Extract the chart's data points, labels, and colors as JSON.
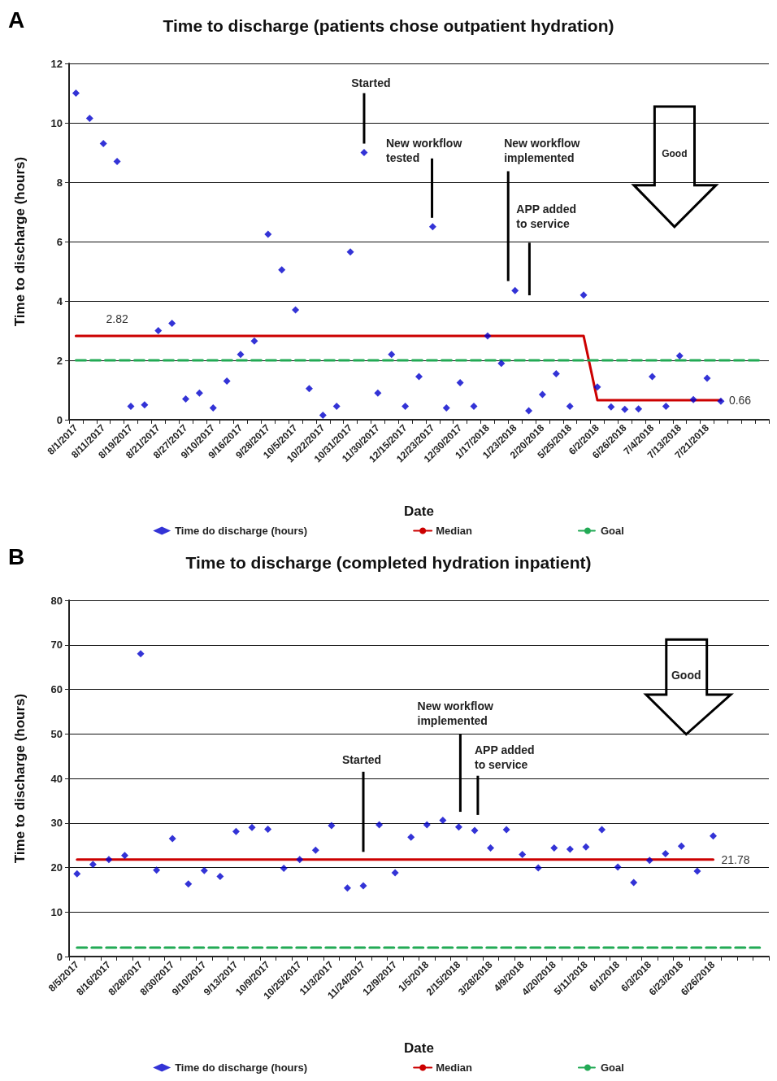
{
  "chart_data": [
    {
      "type": "scatter",
      "title": "Time to discharge (patients chose outpatient hydration)",
      "xlabel": "Date",
      "ylabel": "Time to discharge (hours)",
      "ylim": [
        0,
        12
      ],
      "yticks": [
        0,
        2,
        4,
        6,
        8,
        10,
        12
      ],
      "grid": "y",
      "legend": "bottom",
      "annotations": [
        "A",
        "Started",
        "New workflow tested",
        "New workflow implemented",
        "APP added to service",
        "Good"
      ],
      "categories": [
        "8/1/2017",
        null,
        "8/11/2017",
        null,
        "8/19/2017",
        null,
        "8/21/2017",
        null,
        "8/27/2017",
        null,
        "9/10/2017",
        null,
        "9/16/2017",
        null,
        "9/28/2017",
        null,
        "10/5/2017",
        null,
        "10/22/2017",
        null,
        "10/31/2017",
        null,
        "11/30/2017",
        null,
        "12/15/2017",
        null,
        "12/23/2017",
        null,
        "12/30/2017",
        null,
        "1/17/2018",
        null,
        "1/23/2018",
        null,
        "2/20/2018",
        null,
        "5/25/2018",
        null,
        "6/2/2018",
        null,
        "6/26/2018",
        null,
        "7/4/2018",
        null,
        "7/13/2018",
        null,
        "7/21/2018",
        null,
        null,
        null,
        null
      ],
      "series": [
        {
          "name": "Time do discharge (hours)",
          "marker": "diamond",
          "color": "#0000cc",
          "values": [
            11.0,
            10.15,
            9.3,
            8.7,
            0.45,
            0.5,
            3.0,
            3.25,
            0.7,
            0.9,
            0.4,
            1.3,
            2.2,
            2.65,
            6.25,
            5.05,
            3.7,
            1.05,
            0.15,
            0.45,
            5.65,
            9.0,
            0.9,
            2.2,
            0.45,
            1.45,
            6.5,
            0.4,
            1.25,
            0.45,
            2.82,
            1.9,
            4.35,
            0.3,
            0.85,
            1.55,
            0.45,
            4.2,
            1.1,
            0.43,
            0.35,
            0.36,
            1.45,
            0.45,
            2.15,
            0.68,
            1.4,
            0.62,
            null,
            null,
            null
          ]
        },
        {
          "name": "Median",
          "type": "line",
          "color": "#cc0000",
          "line_style": "solid",
          "values": [
            2.82,
            2.82,
            2.82,
            2.82,
            2.82,
            2.82,
            2.82,
            2.82,
            2.82,
            2.82,
            2.82,
            2.82,
            2.82,
            2.82,
            2.82,
            2.82,
            2.82,
            2.82,
            2.82,
            2.82,
            2.82,
            2.82,
            2.82,
            2.82,
            2.82,
            2.82,
            2.82,
            2.82,
            2.82,
            2.82,
            2.82,
            2.82,
            2.82,
            2.82,
            2.82,
            2.82,
            2.82,
            2.82,
            0.66,
            0.66,
            0.66,
            0.66,
            0.66,
            0.66,
            0.66,
            0.66,
            0.66,
            0.66,
            null,
            null,
            null
          ],
          "value_labels": [
            null,
            null,
            null,
            "2.82",
            null,
            null,
            null,
            null,
            null,
            null,
            null,
            null,
            null,
            null,
            null,
            null,
            null,
            null,
            null,
            null,
            null,
            null,
            null,
            null,
            null,
            null,
            null,
            null,
            null,
            null,
            null,
            null,
            null,
            null,
            null,
            null,
            null,
            null,
            null,
            null,
            null,
            null,
            null,
            null,
            null,
            null,
            null,
            "0.66",
            null,
            null,
            null
          ]
        },
        {
          "name": "Goal",
          "type": "line",
          "color": "#22aa55",
          "line_style": "dashed",
          "values": [
            2,
            2,
            2,
            2,
            2,
            2,
            2,
            2,
            2,
            2,
            2,
            2,
            2,
            2,
            2,
            2,
            2,
            2,
            2,
            2,
            2,
            2,
            2,
            2,
            2,
            2,
            2,
            2,
            2,
            2,
            2,
            2,
            2,
            2,
            2,
            2,
            2,
            2,
            2,
            2,
            2,
            2,
            2,
            2,
            2,
            2,
            2,
            2,
            2,
            2,
            2
          ]
        }
      ]
    },
    {
      "type": "scatter",
      "title": "Time to discharge (completed hydration inpatient)",
      "xlabel": "Date",
      "ylabel": "Time to discharge (hours)",
      "ylim": [
        0,
        80
      ],
      "yticks": [
        0,
        10,
        20,
        30,
        40,
        50,
        60,
        70,
        80
      ],
      "grid": "y",
      "legend": "bottom",
      "annotations": [
        "B",
        "Started",
        "New workflow implemented",
        "APP added to service",
        "Good"
      ],
      "categories": [
        "8/5/2017",
        null,
        "8/16/2017",
        null,
        "8/28/2017",
        null,
        "8/30/2017",
        null,
        "9/10/2017",
        null,
        "9/13/2017",
        null,
        "10/9/2017",
        null,
        "10/25/2017",
        null,
        "11/3/2017",
        null,
        "11/24/2017",
        null,
        "12/9/2017",
        null,
        "1/5/2018",
        null,
        "2/15/2018",
        null,
        "3/28/2018",
        null,
        "4/9/2018",
        null,
        "4/20/2018",
        null,
        "5/11/2018",
        null,
        "6/1/2018",
        null,
        "6/3/2018",
        null,
        "6/23/2018",
        null,
        "6/26/2018",
        null,
        null,
        null
      ],
      "series": [
        {
          "name": "Time do discharge (hours)",
          "marker": "diamond",
          "color": "#0000cc",
          "values": [
            18.6,
            20.7,
            21.8,
            22.7,
            68.0,
            19.4,
            26.5,
            16.3,
            19.3,
            18.0,
            28.1,
            29.0,
            28.6,
            19.8,
            21.8,
            23.9,
            29.4,
            15.4,
            15.9,
            29.6,
            18.8,
            26.8,
            29.6,
            30.6,
            29.1,
            28.3,
            24.4,
            28.5,
            22.9,
            19.9,
            24.4,
            24.1,
            24.6,
            28.5,
            20.1,
            16.6,
            21.6,
            23.1,
            24.8,
            19.2,
            27.1,
            null,
            null,
            null
          ]
        },
        {
          "name": "Median",
          "type": "line",
          "color": "#cc0000",
          "line_style": "solid",
          "values": [
            21.78,
            21.78,
            21.78,
            21.78,
            21.78,
            21.78,
            21.78,
            21.78,
            21.78,
            21.78,
            21.78,
            21.78,
            21.78,
            21.78,
            21.78,
            21.78,
            21.78,
            21.78,
            21.78,
            21.78,
            21.78,
            21.78,
            21.78,
            21.78,
            21.78,
            21.78,
            21.78,
            21.78,
            21.78,
            21.78,
            21.78,
            21.78,
            21.78,
            21.78,
            21.78,
            21.78,
            21.78,
            21.78,
            21.78,
            21.78,
            21.78,
            null,
            null,
            null
          ],
          "value_labels": [
            null,
            null,
            null,
            null,
            null,
            null,
            null,
            null,
            null,
            null,
            null,
            null,
            null,
            null,
            null,
            null,
            null,
            null,
            null,
            null,
            null,
            null,
            null,
            null,
            null,
            null,
            null,
            null,
            null,
            null,
            null,
            null,
            null,
            null,
            null,
            null,
            null,
            null,
            null,
            null,
            "21.78",
            null,
            null,
            null
          ]
        },
        {
          "name": "Goal",
          "type": "line",
          "color": "#22aa55",
          "line_style": "dashed",
          "values": [
            2,
            2,
            2,
            2,
            2,
            2,
            2,
            2,
            2,
            2,
            2,
            2,
            2,
            2,
            2,
            2,
            2,
            2,
            2,
            2,
            2,
            2,
            2,
            2,
            2,
            2,
            2,
            2,
            2,
            2,
            2,
            2,
            2,
            2,
            2,
            2,
            2,
            2,
            2,
            2,
            2,
            2,
            2,
            2
          ]
        }
      ]
    }
  ]
}
